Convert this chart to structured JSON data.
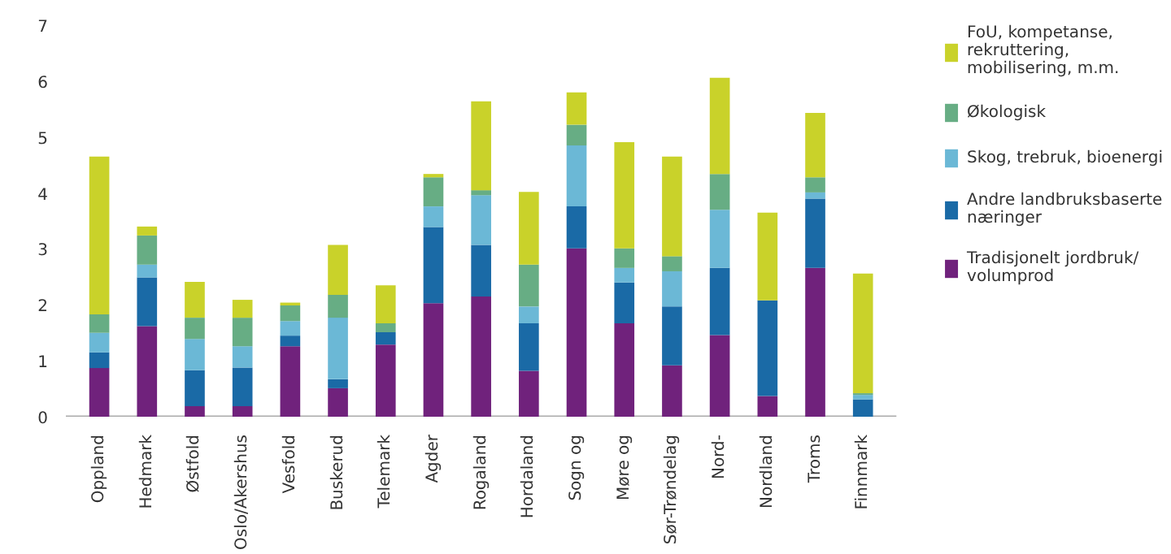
{
  "chart_data": {
    "type": "bar",
    "stacked": true,
    "categories": [
      "Oppland",
      "Hedmark",
      "Østfold",
      "Oslo/Akershus",
      "Vesfold",
      "Buskerud",
      "Telemark",
      "Agder",
      "Rogaland",
      "Hordaland",
      "Sogn og",
      "Møre og",
      "Sør-Trøndelag",
      "Nord-",
      "Nordland",
      "Troms",
      "Finnmark"
    ],
    "series": [
      {
        "name": "Tradisjonelt jordbruk/ volumprod",
        "color": "#70227c",
        "values": [
          0.87,
          1.62,
          0.19,
          0.19,
          1.26,
          0.51,
          1.29,
          2.03,
          2.15,
          0.82,
          3.01,
          1.67,
          0.92,
          1.46,
          0.37,
          2.66,
          0
        ]
      },
      {
        "name": "Andre landbruksbaserte næringer",
        "color": "#1a6aa6",
        "values": [
          0.28,
          0.87,
          0.64,
          0.69,
          0.19,
          0.16,
          0.22,
          1.36,
          0.92,
          0.85,
          0.75,
          0.73,
          1.05,
          1.2,
          1.71,
          1.24,
          0.31
        ]
      },
      {
        "name": "Skog, trebruk, bioenergi",
        "color": "#6bb8d6",
        "values": [
          0.35,
          0.23,
          0.56,
          0.38,
          0.26,
          1.1,
          0,
          0.37,
          0.89,
          0.3,
          1.09,
          0.26,
          0.63,
          1.04,
          0,
          0.11,
          0.08
        ]
      },
      {
        "name": "Økologisk",
        "color": "#67ad84",
        "values": [
          0.33,
          0.52,
          0.38,
          0.51,
          0.28,
          0.41,
          0.16,
          0.52,
          0.09,
          0.75,
          0.37,
          0.35,
          0.27,
          0.64,
          0,
          0.27,
          0.03
        ]
      },
      {
        "name": "FoU, kompetanse, rekruttering, mobilisering, m.m.",
        "color": "#c9d22a",
        "values": [
          2.82,
          0.16,
          0.64,
          0.32,
          0.05,
          0.89,
          0.68,
          0.06,
          1.59,
          1.3,
          0.58,
          1.9,
          1.78,
          1.72,
          1.57,
          1.15,
          2.14
        ]
      }
    ],
    "ylim": [
      0,
      7
    ],
    "yticks": [
      0,
      1,
      2,
      3,
      4,
      5,
      6,
      7
    ],
    "grid": false,
    "legend": "right"
  }
}
